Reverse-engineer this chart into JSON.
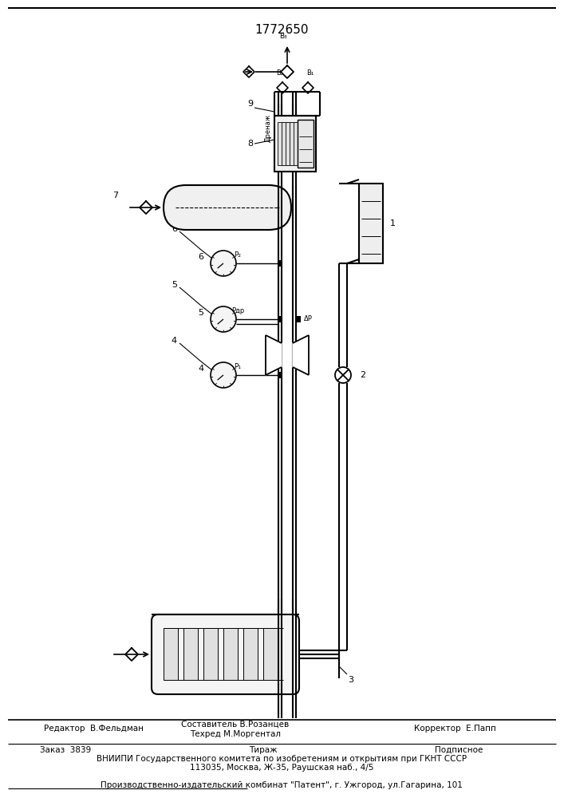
{
  "patent_number": "1772650",
  "bg_color": "#ffffff",
  "footer_editor": "Редактор  В.Фельдман",
  "footer_comp1": "Составитель В.Розанцев",
  "footer_comp2": "Техред М.Моргентал",
  "footer_corr": "Корректор  Е.Папп",
  "footer_order": "Заказ  3839",
  "footer_tirazh": "Тираж",
  "footer_podp": "Подписное",
  "footer_vniip1": "ВНИИПИ Государственного комитета по изобретениям и открытиям при ГКНТ СССР",
  "footer_vniip2": "113035, Москва, Ж-35, Раушская наб., 4/5",
  "footer_prod": "Производственно-издательский комбинат \"Патент\", г. Ужгород, ул.Гагарина, 101"
}
